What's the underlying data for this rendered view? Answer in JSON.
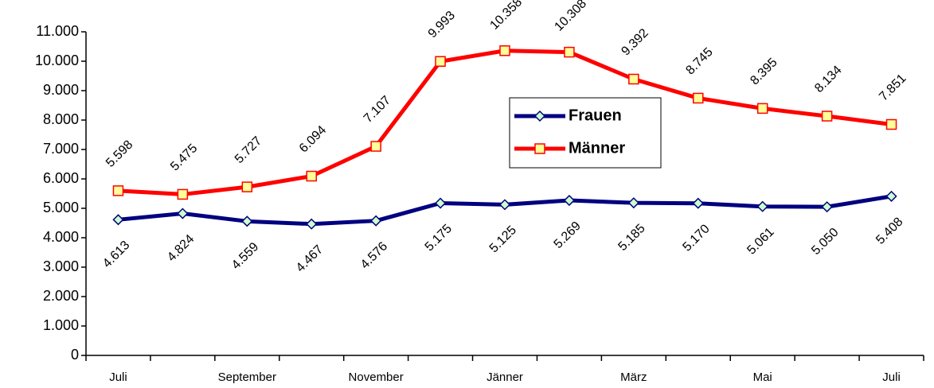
{
  "chart_data": {
    "type": "line",
    "categories": [
      "Juli",
      null,
      "September",
      null,
      "November",
      null,
      "Jänner",
      null,
      "März",
      null,
      "Mai",
      null,
      "Juli"
    ],
    "series": [
      {
        "name": "Frauen",
        "color": "#000080",
        "marker_fill": "#ccffcc",
        "marker": "diamond",
        "values": [
          4613,
          4824,
          4559,
          4467,
          4576,
          5175,
          5125,
          5269,
          5185,
          5170,
          5061,
          5050,
          5408
        ],
        "value_labels": [
          "4.613",
          "4.824",
          "4.559",
          "4.467",
          "4.576",
          "5.175",
          "5.125",
          "5.269",
          "5.185",
          "5.170",
          "5.061",
          "5.050",
          "5.408"
        ]
      },
      {
        "name": "Männer",
        "color": "#ff0000",
        "marker_fill": "#ffff99",
        "marker": "square",
        "values": [
          5598,
          5475,
          5727,
          6094,
          7107,
          9993,
          10358,
          10308,
          9392,
          8745,
          8395,
          8134,
          7851
        ],
        "value_labels": [
          "5.598",
          "5.475",
          "5.727",
          "6.094",
          "7.107",
          "9.993",
          "10.358",
          "10.308",
          "9.392",
          "8.745",
          "8.395",
          "8.134",
          "7.851"
        ]
      }
    ],
    "ylim": [
      0,
      11000
    ],
    "yticks": [
      0,
      {
        "value": 1000,
        "label": "1.000"
      },
      {
        "value": 2000,
        "label": "2.000"
      },
      {
        "value": 3000,
        "label": "3.000"
      },
      {
        "value": 4000,
        "label": "4.000"
      },
      {
        "value": 5000,
        "label": "5.000"
      },
      {
        "value": 6000,
        "label": "6.000"
      },
      {
        "value": 7000,
        "label": "7.000"
      },
      {
        "value": 8000,
        "label": "8.000"
      },
      {
        "value": 9000,
        "label": "9.000"
      },
      {
        "value": 10000,
        "label": "10.000"
      },
      {
        "value": 11000,
        "label": "11.000"
      }
    ],
    "legend": "right"
  }
}
